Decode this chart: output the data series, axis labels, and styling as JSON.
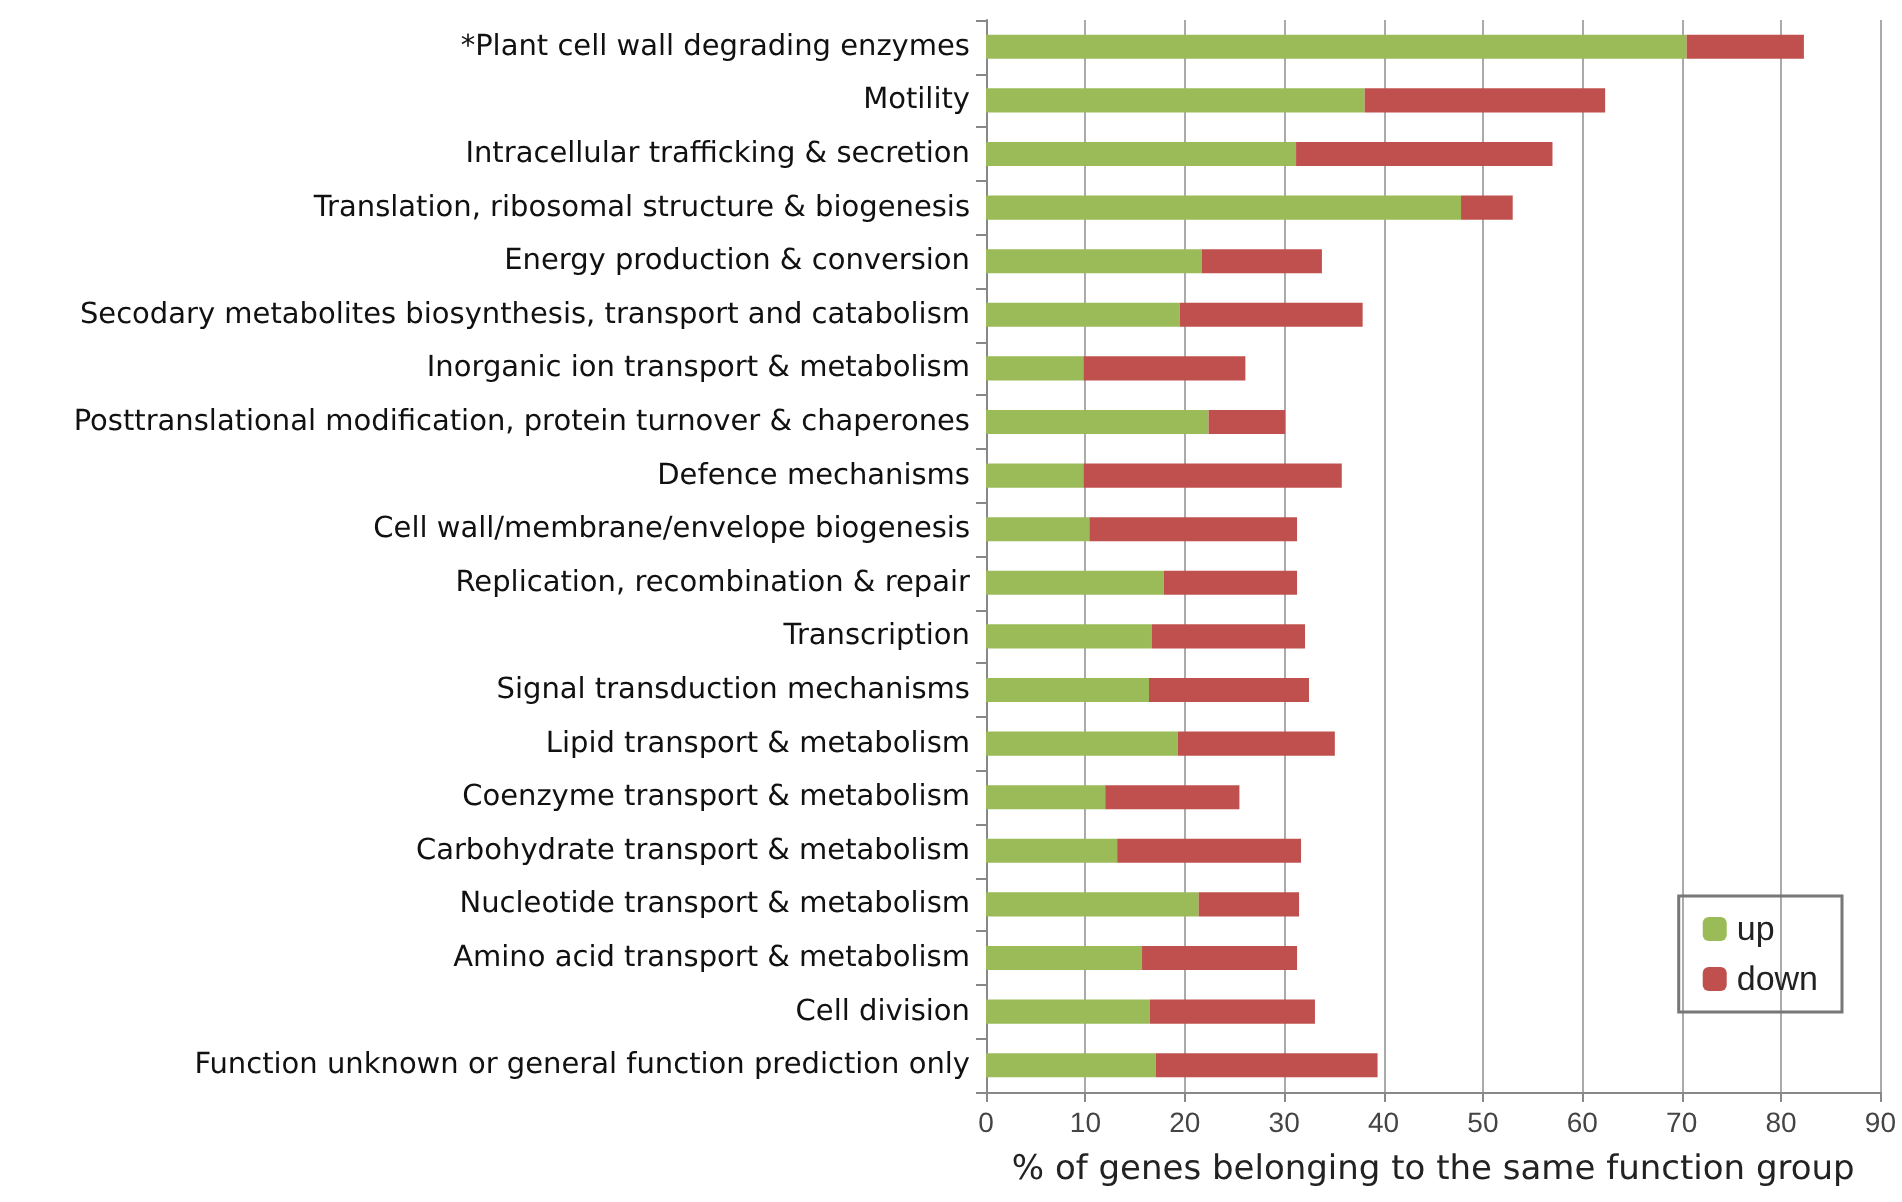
{
  "chart_data": {
    "type": "bar",
    "orientation": "horizontal",
    "stacked": true,
    "xlabel": "% of genes belonging to the same function group",
    "categories": [
      "*Plant cell wall degrading enzymes",
      "Motility",
      "Intracellular trafficking & secretion",
      "Translation, ribosomal structure & biogenesis",
      "Energy production & conversion",
      "Secodary metabolites biosynthesis, transport and catabolism",
      "Inorganic ion transport & metabolism",
      "Posttranslational modification, protein turnover & chaperones",
      "Defence mechanisms",
      "Cell wall/membrane/envelope biogenesis",
      "Replication, recombination & repair",
      "Transcription",
      "Signal transduction mechanisms",
      "Lipid transport & metabolism",
      "Coenzyme transport & metabolism",
      "Carbohydrate transport & metabolism",
      "Nucleotide transport & metabolism",
      "Amino acid transport & metabolism",
      "Cell division",
      "Function unknown or general function prediction only"
    ],
    "series": [
      {
        "name": "up",
        "color": "#9bbb59",
        "values": [
          70.5,
          38.1,
          31.2,
          47.8,
          21.7,
          19.5,
          9.8,
          22.4,
          9.8,
          10.4,
          17.9,
          16.7,
          16.4,
          19.3,
          12,
          13.2,
          21.4,
          15.7,
          16.5,
          17.1
        ]
      },
      {
        "name": "down",
        "color": "#c0504d",
        "values": [
          11.8,
          24.2,
          25.8,
          5.2,
          12.1,
          18.4,
          16.3,
          7.7,
          26,
          20.9,
          13.4,
          15.4,
          16.1,
          15.8,
          13.5,
          18.5,
          10.1,
          15.6,
          16.6,
          22.3
        ]
      }
    ],
    "xlim": [
      0,
      90
    ],
    "xticks": [
      0,
      10,
      20,
      30,
      40,
      50,
      60,
      70,
      80,
      90
    ],
    "grid": "x",
    "legend": "bottom right"
  }
}
